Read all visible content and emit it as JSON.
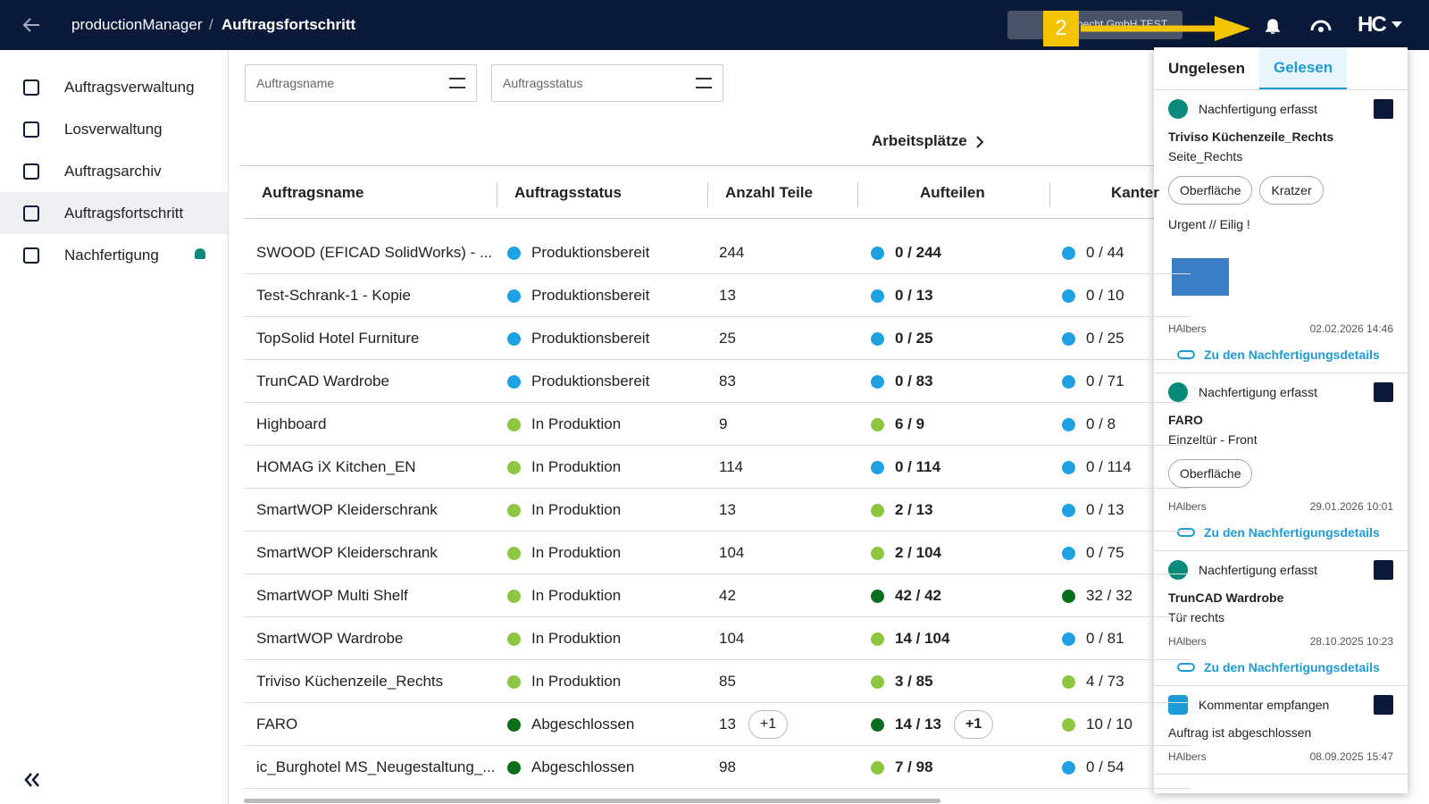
{
  "header": {
    "app": "productionManager",
    "separator": "/",
    "page": "Auftragsfortschritt",
    "org": "knecht GmbH TEST",
    "badge": "2",
    "logo": "HC"
  },
  "sidebar": {
    "items": [
      "Auftragsverwaltung",
      "Losverwaltung",
      "Auftragsarchiv",
      "Auftragsfortschritt",
      "Nachfertigung"
    ],
    "active": 3
  },
  "filters": [
    "Auftragsname",
    "Auftragsstatus"
  ],
  "group_header": "Arbeitsplätze",
  "table": {
    "columns": [
      "Auftragsname",
      "Auftragsstatus",
      "Anzahl Teile",
      "Aufteilen",
      "Kanter"
    ],
    "rows": [
      {
        "name": "SWOOD (EFICAD SolidWorks) - ...",
        "status": "Produktionsbereit",
        "status_color": "#1ea1e3",
        "count": "244",
        "aufteilen": "0 / 244",
        "aufteilen_color": "#1ea1e3",
        "kanten": "0 / 44",
        "kanten_color": "#1ea1e3"
      },
      {
        "name": "Test-Schrank-1 - Kopie",
        "status": "Produktionsbereit",
        "status_color": "#1ea1e3",
        "count": "13",
        "aufteilen": "0 / 13",
        "aufteilen_color": "#1ea1e3",
        "kanten": "0 / 10",
        "kanten_color": "#1ea1e3"
      },
      {
        "name": "TopSolid Hotel Furniture",
        "status": "Produktionsbereit",
        "status_color": "#1ea1e3",
        "count": "25",
        "aufteilen": "0 / 25",
        "aufteilen_color": "#1ea1e3",
        "kanten": "0 / 25",
        "kanten_color": "#1ea1e3"
      },
      {
        "name": "TrunCAD Wardrobe",
        "status": "Produktionsbereit",
        "status_color": "#1ea1e3",
        "count": "83",
        "aufteilen": "0 / 83",
        "aufteilen_color": "#1ea1e3",
        "kanten": "0 / 71",
        "kanten_color": "#1ea1e3"
      },
      {
        "name": "Highboard",
        "status": "In Produktion",
        "status_color": "#8dc63f",
        "count": "9",
        "aufteilen": "6 / 9",
        "aufteilen_color": "#8dc63f",
        "kanten": "0 / 8",
        "kanten_color": "#1ea1e3"
      },
      {
        "name": "HOMAG iX Kitchen_EN",
        "status": "In Produktion",
        "status_color": "#8dc63f",
        "count": "114",
        "aufteilen": "0 / 114",
        "aufteilen_color": "#1ea1e3",
        "kanten": "0 / 114",
        "kanten_color": "#1ea1e3"
      },
      {
        "name": "SmartWOP Kleiderschrank",
        "status": "In Produktion",
        "status_color": "#8dc63f",
        "count": "13",
        "aufteilen": "2 / 13",
        "aufteilen_color": "#8dc63f",
        "kanten": "0 / 13",
        "kanten_color": "#1ea1e3"
      },
      {
        "name": "SmartWOP Kleiderschrank",
        "status": "In Produktion",
        "status_color": "#8dc63f",
        "count": "104",
        "aufteilen": "2 / 104",
        "aufteilen_color": "#8dc63f",
        "kanten": "0 / 75",
        "kanten_color": "#1ea1e3"
      },
      {
        "name": "SmartWOP Multi Shelf",
        "status": "In Produktion",
        "status_color": "#8dc63f",
        "count": "42",
        "aufteilen": "42 / 42",
        "aufteilen_color": "#0b6e1f",
        "kanten": "32 / 32",
        "kanten_color": "#0b6e1f"
      },
      {
        "name": "SmartWOP Wardrobe",
        "status": "In Produktion",
        "status_color": "#8dc63f",
        "count": "104",
        "aufteilen": "14 / 104",
        "aufteilen_color": "#8dc63f",
        "kanten": "0 / 81",
        "kanten_color": "#1ea1e3"
      },
      {
        "name": "Triviso Küchenzeile_Rechts",
        "status": "In Produktion",
        "status_color": "#8dc63f",
        "count": "85",
        "aufteilen": "3 / 85",
        "aufteilen_color": "#8dc63f",
        "kanten": "4 / 73",
        "kanten_color": "#8dc63f"
      },
      {
        "name": "FARO",
        "status": "Abgeschlossen",
        "status_color": "#0b6e1f",
        "count": "13",
        "count_extra": "+1",
        "aufteilen": "14 / 13",
        "aufteilen_color": "#0b6e1f",
        "aufteilen_extra": "+1",
        "kanten": "10 / 10",
        "kanten_color": "#8dc63f"
      },
      {
        "name": "ic_Burghotel MS_Neugestaltung_...",
        "status": "Abgeschlossen",
        "status_color": "#0b6e1f",
        "count": "98",
        "aufteilen": "7 / 98",
        "aufteilen_color": "#8dc63f",
        "kanten": "0 / 54",
        "kanten_color": "#1ea1e3"
      }
    ]
  },
  "notifications": {
    "tabs": [
      "Ungelesen",
      "Gelesen"
    ],
    "active_tab": 1,
    "items": [
      {
        "type": "Nachfertigung erfasst",
        "title": "Triviso Küchenzeile_Rechts",
        "subtitle": "Seite_Rechts",
        "chips": [
          "Oberfläche",
          "Kratzer"
        ],
        "note": "Urgent // Eilig !",
        "image": true,
        "user": "HAlbers",
        "date": "02.02.2026 14:46",
        "link": "Zu den Nachfertigungsdetails"
      },
      {
        "type": "Nachfertigung erfasst",
        "title": "FARO",
        "subtitle": "Einzeltür - Front",
        "chips": [
          "Oberfläche"
        ],
        "user": "HAlbers",
        "date": "29.01.2026 10:01",
        "link": "Zu den Nachfertigungsdetails"
      },
      {
        "type": "Nachfertigung erfasst",
        "title": "TrunCAD Wardrobe",
        "subtitle": "Tür rechts",
        "user": "HAlbers",
        "date": "28.10.2025 10:23",
        "link": "Zu den Nachfertigungsdetails"
      },
      {
        "type": "Kommentar empfangen",
        "subtitle": "Auftrag ist abgeschlossen",
        "user": "HAlbers",
        "date": "08.09.2025 15:47"
      }
    ]
  }
}
